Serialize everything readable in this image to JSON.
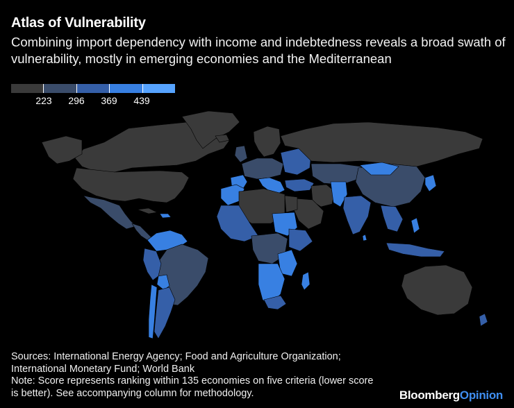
{
  "header": {
    "title": "Atlas of Vulnerability",
    "subtitle": "Combining import dependency with income and indebtedness reveals a broad swath of vulnerability, mostly in emerging economies and the Mediterranean"
  },
  "legend": {
    "colors": [
      "#3a3a3a",
      "#3a4c6a",
      "#355fa8",
      "#3880e2",
      "#56a3ff"
    ],
    "ticks": [
      "223",
      "296",
      "369",
      "439"
    ]
  },
  "map": {
    "colors": {
      "low": "#3a3a3a",
      "mid_low": "#3a4c6a",
      "mid": "#355fa8",
      "mid_high": "#3880e2",
      "high": "#56a3ff"
    }
  },
  "footer": {
    "sources_line1": "Sources: International Energy Agency; Food and Agriculture Organization;",
    "sources_line2": "International Monetary Fund; World Bank",
    "note_line1": "Note: Score represents ranking within 135 economies on five criteria (lower score",
    "note_line2": "is better). See accompanying column for methodology.",
    "brand_part1": "Bloomberg",
    "brand_part2": "Opinion"
  }
}
